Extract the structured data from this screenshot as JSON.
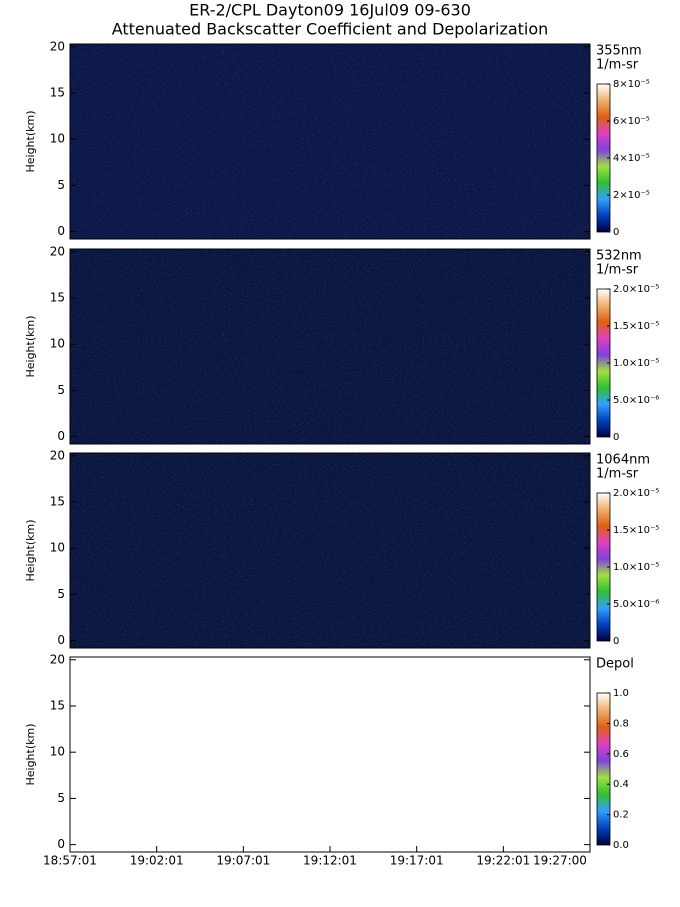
{
  "chart_data": {
    "type": "heatmap",
    "title_lines": [
      "ER-2/CPL Dayton09 16Jul09 09-630",
      "Attenuated Backscatter Coefficient and Depolarization"
    ],
    "y_label": "Height(km)",
    "x_tick_labels": [
      "18:57:01",
      "19:02:01",
      "19:07:01",
      "19:12:01",
      "19:17:01",
      "19:22:01",
      "19:27:00"
    ],
    "colormap": [
      "#000040",
      "#0040c0",
      "#30a0ff",
      "#30c030",
      "#a0e040",
      "#8040e0",
      "#e040c0",
      "#e06010",
      "#f0b070",
      "#ffffff"
    ],
    "panels": [
      {
        "label_lines": [
          "355nm",
          "1/m-sr"
        ],
        "background": "#0c1848",
        "ylim": [
          -0.8,
          20.3
        ],
        "yticks": [
          0,
          5,
          10,
          15,
          20
        ],
        "clim": [
          0,
          8e-05
        ],
        "cticks": [
          0,
          {
            "value": 2e-05,
            "label": "2×10⁻⁵"
          },
          {
            "value": 4e-05,
            "label": "4×10⁻⁵"
          },
          {
            "value": 6e-05,
            "label": "6×10⁻⁵"
          },
          {
            "value": 8e-05,
            "label": "8×10⁻⁵"
          }
        ]
      },
      {
        "label_lines": [
          "532nm",
          "1/m-sr"
        ],
        "background": "#0a1640",
        "ylim": [
          -0.8,
          20.3
        ],
        "yticks": [
          0,
          5,
          10,
          15,
          20
        ],
        "clim": [
          0,
          2e-05
        ],
        "cticks": [
          0,
          {
            "value": 5e-06,
            "label": "5.0×10⁻⁶"
          },
          {
            "value": 1e-05,
            "label": "1.0×10⁻⁵"
          },
          {
            "value": 1.5e-05,
            "label": "1.5×10⁻⁵"
          },
          {
            "value": 2e-05,
            "label": "2.0×10⁻⁵"
          }
        ]
      },
      {
        "label_lines": [
          "1064nm",
          "1/m-sr"
        ],
        "background": "#0a1640",
        "ylim": [
          -0.8,
          20.3
        ],
        "yticks": [
          0,
          5,
          10,
          15,
          20
        ],
        "clim": [
          0,
          2e-05
        ],
        "cticks": [
          0,
          {
            "value": 5e-06,
            "label": "5.0×10⁻⁶"
          },
          {
            "value": 1e-05,
            "label": "1.0×10⁻⁵"
          },
          {
            "value": 1.5e-05,
            "label": "1.5×10⁻⁵"
          },
          {
            "value": 2e-05,
            "label": "2.0×10⁻⁵"
          }
        ]
      },
      {
        "label_lines": [
          "Depol"
        ],
        "background": "#ffffff",
        "ylim": [
          -0.8,
          20.3
        ],
        "yticks": [
          0,
          5,
          10,
          15,
          20
        ],
        "clim": [
          0,
          1
        ],
        "cticks": [
          {
            "value": 0,
            "label": "0.0"
          },
          0.2,
          0.4,
          0.6,
          0.8,
          {
            "value": 1,
            "label": "1.0"
          }
        ]
      }
    ]
  }
}
